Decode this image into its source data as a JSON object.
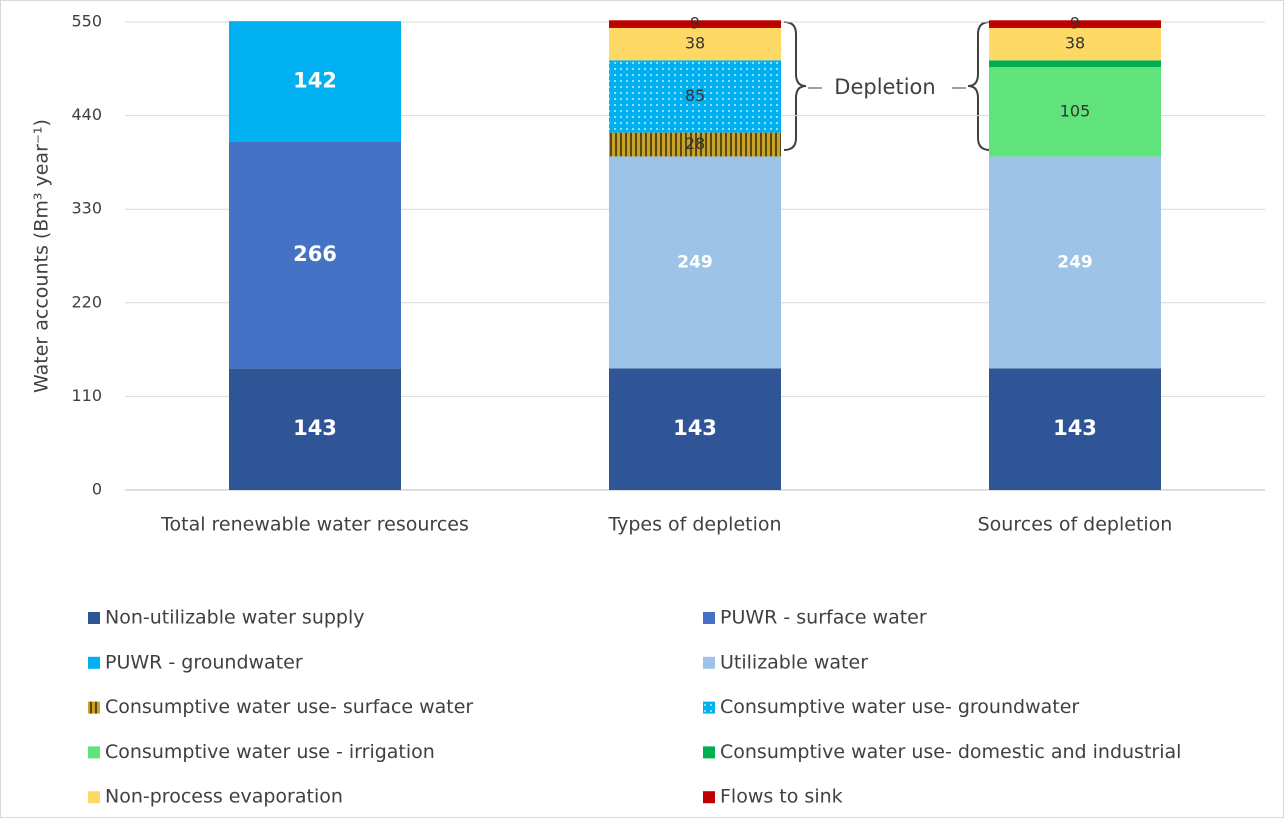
{
  "chart_data": {
    "type": "stacked-bar",
    "y_label": "Water accounts (Bm³ year⁻¹)",
    "annotation": "Depletion",
    "categories": [
      "Total renewable water resources",
      "Types of depletion",
      "Sources of depletion"
    ],
    "ylim": [
      0,
      550
    ],
    "yticks": [
      0,
      110,
      220,
      330,
      440,
      550
    ],
    "grid": true,
    "series": [
      {
        "name": "Non-utilizable water supply",
        "color": "#2f5597",
        "label_color": "#ffffff",
        "values": [
          143,
          143,
          143
        ]
      },
      {
        "name": "PUWR - surface water",
        "color": "#4472c4",
        "label_color": "#ffffff",
        "values": [
          266,
          null,
          null
        ]
      },
      {
        "name": "PUWR - groundwater",
        "color": "#00b0f0",
        "label_color": "#ffffff",
        "values": [
          142,
          null,
          null
        ]
      },
      {
        "name": "Utilizable water",
        "color": "#9dc3e6",
        "label_color": "#ffffff",
        "values": [
          null,
          249,
          249
        ]
      },
      {
        "name": "Consumptive water use- surface water",
        "color": "#c9a227",
        "pattern": "stripes",
        "label_color": "#333333",
        "values": [
          null,
          28,
          null
        ]
      },
      {
        "name": "Consumptive water use- groundwater",
        "color": "#00b0f0",
        "pattern": "dots",
        "label_color": "#333333",
        "values": [
          null,
          85,
          null
        ]
      },
      {
        "name": "Consumptive water use - irrigation",
        "color": "#5fe37a",
        "label_color": "#333333",
        "values": [
          null,
          null,
          105
        ]
      },
      {
        "name": "Consumptive water use- domestic and industrial",
        "color": "#00b050",
        "label_color": "#333333",
        "values": [
          null,
          null,
          8
        ],
        "value_labels": [
          null,
          null,
          null
        ]
      },
      {
        "name": "Non-process evaporation",
        "color": "#ffd966",
        "label_color": "#333333",
        "values": [
          null,
          38,
          38
        ]
      },
      {
        "name": "Flows to sink",
        "color": "#c00000",
        "label_color": "#333333",
        "values": [
          null,
          9,
          9
        ]
      }
    ]
  }
}
